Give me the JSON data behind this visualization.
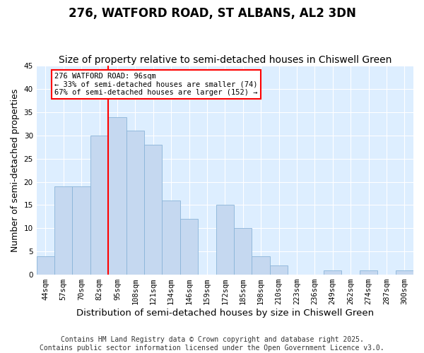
{
  "title": "276, WATFORD ROAD, ST ALBANS, AL2 3DN",
  "subtitle": "Size of property relative to semi-detached houses in Chiswell Green",
  "xlabel": "Distribution of semi-detached houses by size in Chiswell Green",
  "ylabel": "Number of semi-detached properties",
  "bar_labels": [
    "44sqm",
    "57sqm",
    "70sqm",
    "82sqm",
    "95sqm",
    "108sqm",
    "121sqm",
    "134sqm",
    "146sqm",
    "159sqm",
    "172sqm",
    "185sqm",
    "198sqm",
    "210sqm",
    "223sqm",
    "236sqm",
    "249sqm",
    "262sqm",
    "274sqm",
    "287sqm",
    "300sqm"
  ],
  "bar_values": [
    4,
    19,
    19,
    30,
    34,
    31,
    28,
    16,
    12,
    0,
    15,
    10,
    4,
    2,
    0,
    0,
    1,
    0,
    1,
    0,
    1
  ],
  "bar_color": "#c5d8f0",
  "bar_edge_color": "#8ab4d8",
  "vline_color": "red",
  "vline_index": 4,
  "annotation_text": "276 WATFORD ROAD: 96sqm\n← 33% of semi-detached houses are smaller (74)\n67% of semi-detached houses are larger (152) →",
  "annotation_box_color": "white",
  "annotation_box_edge_color": "red",
  "footer": "Contains HM Land Registry data © Crown copyright and database right 2025.\nContains public sector information licensed under the Open Government Licence v3.0.",
  "ylim": [
    0,
    45
  ],
  "background_color": "#ddeeff",
  "grid_color": "white",
  "fig_background": "white",
  "title_fontsize": 12,
  "subtitle_fontsize": 10,
  "xlabel_fontsize": 9.5,
  "ylabel_fontsize": 9,
  "tick_fontsize": 7.5,
  "footer_fontsize": 7
}
